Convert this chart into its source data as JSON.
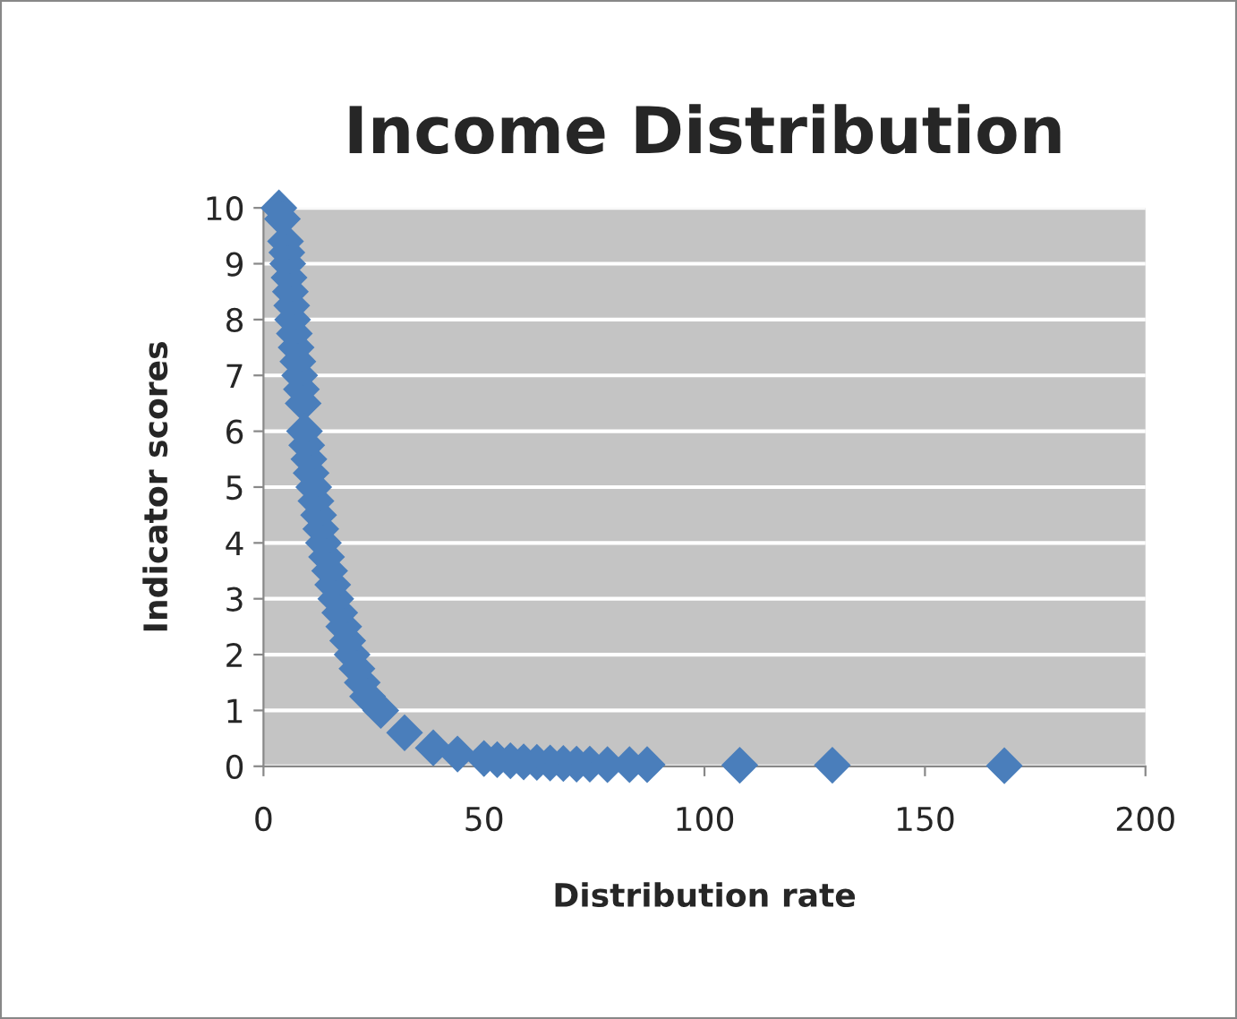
{
  "chart_data": {
    "type": "scatter",
    "title": "Income Distribution",
    "xlabel": "Distribution rate",
    "ylabel": "Indicator scores",
    "x": [
      3.5,
      4.3,
      5.0,
      5.3,
      5.5,
      5.8,
      6.1,
      6.4,
      6.6,
      7.0,
      7.4,
      7.8,
      8.2,
      8.6,
      9.0,
      9.3,
      9.8,
      10.3,
      10.8,
      11.4,
      11.9,
      12.5,
      13.0,
      13.6,
      14.3,
      15.0,
      15.7,
      16.4,
      17.3,
      18.2,
      19.1,
      20.1,
      21.2,
      22.4,
      23.6,
      26.6,
      32.0,
      38.5,
      44.0,
      50.0,
      53.0,
      56.0,
      59.0,
      62.0,
      65.0,
      68.0,
      71.0,
      74.0,
      78.0,
      83.0,
      87.0,
      108.0,
      129.0,
      168.0
    ],
    "series": [
      {
        "color": "#4a7ebb",
        "values": [
          10.0,
          9.8,
          9.4,
          9.2,
          9.0,
          8.75,
          8.5,
          8.25,
          8.0,
          7.75,
          7.5,
          7.25,
          7.0,
          6.75,
          6.5,
          6.0,
          5.75,
          5.5,
          5.25,
          5.0,
          4.75,
          4.5,
          4.25,
          4.0,
          3.75,
          3.5,
          3.25,
          3.0,
          2.75,
          2.5,
          2.25,
          2.0,
          1.75,
          1.5,
          1.25,
          1.0,
          0.6,
          0.33,
          0.22,
          0.14,
          0.12,
          0.1,
          0.08,
          0.07,
          0.06,
          0.05,
          0.04,
          0.04,
          0.03,
          0.03,
          0.03,
          0.02,
          0.02,
          0.01
        ]
      }
    ],
    "xlim": [
      0,
      200
    ],
    "ylim": [
      0,
      10
    ],
    "xticks": [
      0,
      50,
      100,
      150,
      200
    ],
    "yticks": [
      0,
      1,
      2,
      3,
      4,
      5,
      6,
      7,
      8,
      9,
      10
    ],
    "grid": "y",
    "marker": "diamond",
    "legend": false
  }
}
